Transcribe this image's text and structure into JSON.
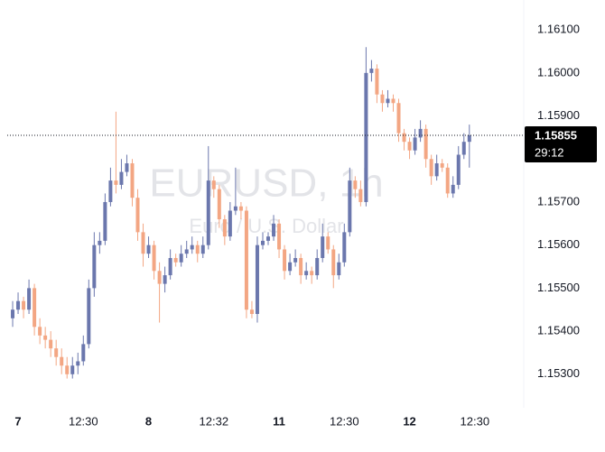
{
  "chart_data": {
    "type": "candlestick",
    "title": "EURUSD, 1h",
    "subtitle": "Euro / U.S. Dollar",
    "up_color": "#6b77ad",
    "down_color": "#f3a683",
    "x": [
      0,
      1,
      2,
      3,
      4,
      5,
      6,
      7,
      8,
      9,
      10,
      11,
      12,
      13,
      14,
      15,
      16,
      17,
      18,
      19,
      20,
      21,
      22,
      23,
      24,
      25,
      26,
      27,
      28,
      29,
      30,
      31,
      32,
      33,
      34,
      35,
      36,
      37,
      38,
      39,
      40,
      41,
      42,
      43,
      44,
      45,
      46,
      47,
      48,
      49,
      50,
      51,
      52,
      53,
      54,
      55,
      56,
      57,
      58,
      59,
      60,
      61,
      62,
      63,
      64,
      65,
      66,
      67,
      68,
      69,
      70,
      71,
      72,
      73,
      74,
      75,
      76,
      77,
      78,
      79,
      80,
      81,
      82,
      83,
      84
    ],
    "open": [
      1.1543,
      1.1545,
      1.1547,
      1.1545,
      1.155,
      1.1541,
      1.1539,
      1.1538,
      1.1536,
      1.1534,
      1.1532,
      1.153,
      1.1532,
      1.1533,
      1.1537,
      1.155,
      1.156,
      1.1561,
      1.157,
      1.1575,
      1.1574,
      1.1577,
      1.1579,
      1.1571,
      1.1563,
      1.1558,
      1.156,
      1.1554,
      1.1551,
      1.1553,
      1.1557,
      1.1556,
      1.1558,
      1.1559,
      1.156,
      1.1558,
      1.156,
      1.1575,
      1.1573,
      1.1566,
      1.1562,
      1.1568,
      1.1569,
      1.1568,
      1.1545,
      1.1544,
      1.156,
      1.1561,
      1.1562,
      1.1565,
      1.1559,
      1.1554,
      1.1556,
      1.1557,
      1.1553,
      1.1554,
      1.1553,
      1.1557,
      1.1562,
      1.1559,
      1.1553,
      1.1556,
      1.1563,
      1.1575,
      1.1573,
      1.157,
      1.16,
      1.1601,
      1.1595,
      1.1593,
      1.1594,
      1.1593,
      1.1586,
      1.1584,
      1.1582,
      1.1585,
      1.1587,
      1.158,
      1.1576,
      1.1579,
      1.1578,
      1.1572,
      1.1574,
      1.1581,
      1.1584
    ],
    "high": [
      1.1547,
      1.1549,
      1.1548,
      1.1552,
      1.1551,
      1.1543,
      1.1541,
      1.154,
      1.1538,
      1.1536,
      1.1534,
      1.1534,
      1.1535,
      1.1539,
      1.1552,
      1.1563,
      1.1563,
      1.1572,
      1.1578,
      1.1591,
      1.158,
      1.1581,
      1.158,
      1.1573,
      1.1565,
      1.1562,
      1.1561,
      1.1556,
      1.1555,
      1.1559,
      1.1558,
      1.156,
      1.1561,
      1.1562,
      1.1561,
      1.1562,
      1.1583,
      1.1576,
      1.1574,
      1.1567,
      1.157,
      1.1578,
      1.157,
      1.1569,
      1.1547,
      1.1562,
      1.1563,
      1.1563,
      1.1567,
      1.1566,
      1.156,
      1.1558,
      1.1559,
      1.1558,
      1.1556,
      1.1555,
      1.1559,
      1.1565,
      1.1563,
      1.156,
      1.1558,
      1.1565,
      1.1578,
      1.1576,
      1.1575,
      1.1606,
      1.1603,
      1.1602,
      1.1596,
      1.1596,
      1.1595,
      1.1594,
      1.1587,
      1.1585,
      1.1587,
      1.1589,
      1.1588,
      1.1581,
      1.1581,
      1.158,
      1.1579,
      1.1576,
      1.1583,
      1.1586,
      1.1588
    ],
    "low": [
      1.1541,
      1.1544,
      1.1543,
      1.1544,
      1.1539,
      1.1537,
      1.1536,
      1.1534,
      1.1532,
      1.153,
      1.1529,
      1.1529,
      1.153,
      1.1532,
      1.1536,
      1.1548,
      1.1558,
      1.156,
      1.1569,
      1.1572,
      1.1573,
      1.1576,
      1.1569,
      1.1561,
      1.1555,
      1.1557,
      1.1552,
      1.1542,
      1.1549,
      1.1552,
      1.1555,
      1.1555,
      1.1557,
      1.1558,
      1.1556,
      1.1557,
      1.1559,
      1.1571,
      1.1564,
      1.156,
      1.1561,
      1.1567,
      1.1566,
      1.1543,
      1.1543,
      1.1542,
      1.1559,
      1.156,
      1.1561,
      1.1557,
      1.1552,
      1.1553,
      1.1555,
      1.1551,
      1.1552,
      1.1551,
      1.1552,
      1.1556,
      1.1558,
      1.155,
      1.1552,
      1.1555,
      1.1562,
      1.1571,
      1.1569,
      1.1569,
      1.1598,
      1.1593,
      1.1591,
      1.1592,
      1.1591,
      1.1584,
      1.1582,
      1.158,
      1.1581,
      1.1584,
      1.1578,
      1.1574,
      1.1575,
      1.1577,
      1.1571,
      1.1571,
      1.1573,
      1.158,
      1.1578
    ],
    "close": [
      1.1545,
      1.1547,
      1.1545,
      1.155,
      1.1541,
      1.1539,
      1.1538,
      1.1536,
      1.1534,
      1.1532,
      1.153,
      1.1532,
      1.1533,
      1.1537,
      1.155,
      1.156,
      1.1561,
      1.157,
      1.1575,
      1.1574,
      1.1577,
      1.1579,
      1.1571,
      1.1563,
      1.1558,
      1.156,
      1.1554,
      1.1551,
      1.1553,
      1.1557,
      1.1556,
      1.1558,
      1.1559,
      1.156,
      1.1558,
      1.156,
      1.1575,
      1.1573,
      1.1566,
      1.1562,
      1.1568,
      1.1569,
      1.1568,
      1.1545,
      1.1544,
      1.156,
      1.1561,
      1.1562,
      1.1565,
      1.1559,
      1.1554,
      1.1556,
      1.1557,
      1.1553,
      1.1554,
      1.1553,
      1.1557,
      1.1562,
      1.1559,
      1.1553,
      1.1556,
      1.1563,
      1.1575,
      1.1573,
      1.157,
      1.16,
      1.1601,
      1.1595,
      1.1593,
      1.1594,
      1.1593,
      1.1586,
      1.1584,
      1.1582,
      1.1585,
      1.1587,
      1.158,
      1.1576,
      1.1579,
      1.1578,
      1.1572,
      1.1574,
      1.1581,
      1.1584,
      1.15855
    ],
    "xlim": [
      -1,
      94
    ],
    "xticks": [
      {
        "value": 1,
        "label": "7"
      },
      {
        "value": 13,
        "label": "12:30"
      },
      {
        "value": 25,
        "label": "8"
      },
      {
        "value": 37,
        "label": "12:32"
      },
      {
        "value": 49,
        "label": "11"
      },
      {
        "value": 61,
        "label": "12:30"
      },
      {
        "value": 73,
        "label": "12"
      },
      {
        "value": 85,
        "label": "12:30"
      }
    ],
    "ylim": [
      1.15222,
      1.161695
    ],
    "yticks": [
      {
        "value": 1.153,
        "label": "1.15300"
      },
      {
        "value": 1.154,
        "label": "1.15400"
      },
      {
        "value": 1.155,
        "label": "1.15500"
      },
      {
        "value": 1.156,
        "label": "1.15600"
      },
      {
        "value": 1.157,
        "label": "1.15700"
      },
      {
        "value": 1.159,
        "label": "1.15900"
      },
      {
        "value": 1.16,
        "label": "1.16000"
      },
      {
        "value": 1.161,
        "label": "1.16100"
      }
    ],
    "price_line": {
      "value": 1.15855,
      "label": "1.15855"
    },
    "countdown": "29:12",
    "grid": false
  }
}
